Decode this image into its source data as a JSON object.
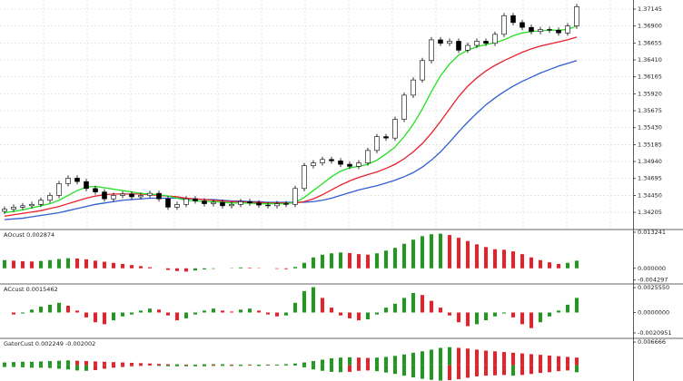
{
  "chart_data": [
    {
      "type": "candlestick",
      "up_color": "#ffffff",
      "down_color": "#000000",
      "grid": true,
      "ylim": [
        1.3397,
        1.3725
      ],
      "yticks": [
        1.37145,
        {
          "value": 1.369,
          "label": "1.36900"
        },
        1.36655,
        {
          "value": 1.3641,
          "label": "1.36410"
        },
        1.36165,
        {
          "value": 1.3592,
          "label": "1.35920"
        },
        1.35675,
        {
          "value": 1.3543,
          "label": "1.35430"
        },
        1.35185,
        {
          "value": 1.3494,
          "label": "1.34940"
        },
        1.34695,
        {
          "value": 1.3445,
          "label": "1.34450"
        },
        1.34205
      ],
      "open": [
        1.3422,
        1.3425,
        1.3428,
        1.343,
        1.3432,
        1.3438,
        1.3445,
        1.3462,
        1.347,
        1.3465,
        1.3455,
        1.345,
        1.344,
        1.3445,
        1.3447,
        1.3443,
        1.3445,
        1.3448,
        1.344,
        1.3428,
        1.3432,
        1.344,
        1.3437,
        1.3433,
        1.3435,
        1.343,
        1.3432,
        1.3436,
        1.3434,
        1.3431,
        1.343,
        1.3433,
        1.3432,
        1.3455,
        1.3488,
        1.3492,
        1.3497,
        1.3495,
        1.349,
        1.3487,
        1.3492,
        1.351,
        1.353,
        1.3528,
        1.3555,
        1.359,
        1.3612,
        1.364,
        1.367,
        1.3665,
        1.3668,
        1.3655,
        1.3662,
        1.3668,
        1.3665,
        1.3678,
        1.3705,
        1.3695,
        1.3688,
        1.3682,
        1.3685,
        1.3684,
        1.368,
        1.369
      ],
      "high": [
        1.3429,
        1.3432,
        1.3434,
        1.3436,
        1.3442,
        1.3449,
        1.3466,
        1.3474,
        1.3474,
        1.3469,
        1.3459,
        1.3454,
        1.3449,
        1.3451,
        1.3451,
        1.3449,
        1.3452,
        1.3452,
        1.3444,
        1.3436,
        1.3444,
        1.3444,
        1.3441,
        1.3439,
        1.3439,
        1.3436,
        1.344,
        1.344,
        1.3438,
        1.3435,
        1.3437,
        1.3437,
        1.3459,
        1.3492,
        1.3496,
        1.3501,
        1.3501,
        1.3499,
        1.3494,
        1.3496,
        1.3514,
        1.3534,
        1.3534,
        1.3559,
        1.3594,
        1.3616,
        1.3644,
        1.3674,
        1.3674,
        1.3672,
        1.3672,
        1.3666,
        1.3672,
        1.3672,
        1.3682,
        1.3709,
        1.3709,
        1.3699,
        1.3692,
        1.3689,
        1.3689,
        1.3688,
        1.3694,
        1.3722
      ],
      "low": [
        1.3418,
        1.3421,
        1.3424,
        1.3426,
        1.3428,
        1.3434,
        1.3441,
        1.3458,
        1.3461,
        1.3451,
        1.3446,
        1.3436,
        1.3436,
        1.3441,
        1.3439,
        1.3439,
        1.3441,
        1.3436,
        1.3424,
        1.3424,
        1.3428,
        1.3433,
        1.3429,
        1.3429,
        1.3426,
        1.3426,
        1.3428,
        1.343,
        1.3427,
        1.3426,
        1.3426,
        1.3428,
        1.3428,
        1.3451,
        1.3484,
        1.3488,
        1.3491,
        1.3486,
        1.3483,
        1.3483,
        1.3488,
        1.3506,
        1.3524,
        1.3524,
        1.3551,
        1.3586,
        1.3608,
        1.3636,
        1.3661,
        1.3661,
        1.3651,
        1.3651,
        1.3658,
        1.3661,
        1.3661,
        1.3674,
        1.3691,
        1.3684,
        1.3678,
        1.3678,
        1.368,
        1.3676,
        1.3676,
        1.3686
      ],
      "close": [
        1.3425,
        1.3428,
        1.343,
        1.3432,
        1.3438,
        1.3445,
        1.3462,
        1.347,
        1.3465,
        1.3455,
        1.345,
        1.344,
        1.3445,
        1.3447,
        1.3443,
        1.3445,
        1.3448,
        1.344,
        1.3428,
        1.3432,
        1.344,
        1.3437,
        1.3433,
        1.3435,
        1.343,
        1.3432,
        1.3436,
        1.3434,
        1.3431,
        1.343,
        1.3433,
        1.3432,
        1.3455,
        1.3488,
        1.3492,
        1.3497,
        1.3495,
        1.349,
        1.3487,
        1.3492,
        1.351,
        1.353,
        1.3528,
        1.3555,
        1.359,
        1.3612,
        1.364,
        1.367,
        1.3665,
        1.3668,
        1.3655,
        1.3662,
        1.3668,
        1.3665,
        1.3678,
        1.3705,
        1.3695,
        1.3688,
        1.3682,
        1.3685,
        1.3684,
        1.368,
        1.369,
        1.3718
      ],
      "series": [
        {
          "color": "#2f5fd0",
          "values": [
            1.341,
            1.3411,
            1.3412,
            1.3414,
            1.3416,
            1.3418,
            1.342,
            1.3423,
            1.3426,
            1.3429,
            1.3432,
            1.3434,
            1.3436,
            1.3438,
            1.3439,
            1.344,
            1.3441,
            1.3441,
            1.3441,
            1.3441,
            1.344,
            1.344,
            1.3439,
            1.3439,
            1.3438,
            1.3437,
            1.3437,
            1.3436,
            1.3436,
            1.3435,
            1.3435,
            1.3435,
            1.3435,
            1.3435,
            1.3436,
            1.3438,
            1.3441,
            1.3445,
            1.3449,
            1.3453,
            1.3456,
            1.3459,
            1.3463,
            1.3467,
            1.3472,
            1.3478,
            1.3486,
            1.3496,
            1.3508,
            1.3522,
            1.3537,
            1.3551,
            1.3564,
            1.3576,
            1.3586,
            1.3595,
            1.3603,
            1.361,
            1.3616,
            1.3622,
            1.3627,
            1.3632,
            1.3636,
            1.364
          ]
        },
        {
          "color": "#e8202a",
          "values": [
            1.3415,
            1.3417,
            1.3419,
            1.3421,
            1.3423,
            1.3426,
            1.3429,
            1.3433,
            1.3437,
            1.3441,
            1.3444,
            1.3446,
            1.3447,
            1.3447,
            1.3447,
            1.3447,
            1.3446,
            1.3445,
            1.3444,
            1.3443,
            1.3441,
            1.344,
            1.3439,
            1.3438,
            1.3437,
            1.3436,
            1.3436,
            1.3435,
            1.3435,
            1.3434,
            1.3434,
            1.3434,
            1.3434,
            1.3436,
            1.344,
            1.3446,
            1.3453,
            1.346,
            1.3466,
            1.3471,
            1.3475,
            1.3479,
            1.3484,
            1.349,
            1.3498,
            1.3508,
            1.352,
            1.3535,
            1.3552,
            1.357,
            1.3588,
            1.3603,
            1.3615,
            1.3625,
            1.3633,
            1.364,
            1.3646,
            1.3652,
            1.3657,
            1.3661,
            1.3664,
            1.3667,
            1.367,
            1.3674
          ]
        },
        {
          "color": "#22e022",
          "values": [
            1.342,
            1.3422,
            1.3424,
            1.3427,
            1.343,
            1.3433,
            1.3438,
            1.3445,
            1.3452,
            1.3457,
            1.3458,
            1.3456,
            1.3454,
            1.3452,
            1.345,
            1.3448,
            1.3447,
            1.3446,
            1.3444,
            1.3441,
            1.3438,
            1.3437,
            1.3436,
            1.3436,
            1.3435,
            1.3434,
            1.3434,
            1.3434,
            1.3433,
            1.3433,
            1.3433,
            1.3433,
            1.3435,
            1.3442,
            1.3452,
            1.3462,
            1.3472,
            1.348,
            1.3485,
            1.3487,
            1.349,
            1.3496,
            1.3505,
            1.3515,
            1.353,
            1.3548,
            1.357,
            1.3595,
            1.3618,
            1.3635,
            1.3648,
            1.3655,
            1.366,
            1.3663,
            1.3666,
            1.367,
            1.3676,
            1.368,
            1.3682,
            1.3683,
            1.3684,
            1.3684,
            1.3685,
            1.369
          ]
        }
      ]
    },
    {
      "type": "bar",
      "title": "AOcust 0.002874",
      "color_rule": "rising",
      "up_color": "#1f9a1f",
      "down_color": "#e8202a",
      "ylim": [
        -0.0054,
        0.0139
      ],
      "yticks": [
        0.013241,
        {
          "value": 0,
          "label": "0.000000"
        },
        -0.004297
      ],
      "series": [
        {
          "values": [
            0.003,
            0.0028,
            0.0026,
            0.0025,
            0.0027,
            0.003,
            0.0034,
            0.0037,
            0.0036,
            0.0033,
            0.0028,
            0.0024,
            0.002,
            0.0016,
            0.0012,
            0.0008,
            0.0004,
            0.0,
            -0.0006,
            -0.001,
            -0.0012,
            -0.0008,
            -0.0004,
            -0.0002,
            0.0,
            0.0001,
            0.0003,
            0.0002,
            0.0001,
            0.0,
            -0.0002,
            -0.0003,
            0.0005,
            0.002,
            0.004,
            0.005,
            0.0055,
            0.0058,
            0.0056,
            0.0052,
            0.005,
            0.0055,
            0.0065,
            0.0075,
            0.009,
            0.0105,
            0.0118,
            0.0125,
            0.0127,
            0.0122,
            0.0112,
            0.01,
            0.0088,
            0.0078,
            0.007,
            0.0068,
            0.0062,
            0.0052,
            0.004,
            0.003,
            0.0022,
            0.0016,
            0.002,
            0.0028
          ]
        }
      ]
    },
    {
      "type": "bar",
      "title": "ACcust 0.0015462",
      "color_rule": "rising",
      "up_color": "#1f9a1f",
      "down_color": "#e8202a",
      "ylim": [
        -0.00256,
        0.00284
      ],
      "yticks": [
        {
          "value": 0.002555,
          "label": "0.0025550"
        },
        {
          "value": 0,
          "label": "0.0000000"
        },
        -0.0020951
      ],
      "series": [
        {
          "values": [
            0.0,
            -0.0002,
            -0.0001,
            0.0003,
            0.0006,
            0.0008,
            0.001,
            0.0007,
            0.0002,
            -0.0005,
            -0.001,
            -0.0012,
            -0.0008,
            -0.0004,
            -0.0002,
            0.0002,
            0.0004,
            0.0003,
            -0.0003,
            -0.0008,
            -0.0006,
            -0.0002,
            0.0002,
            0.0004,
            0.0002,
            0.0001,
            0.0003,
            0.0004,
            0.0002,
            -0.0002,
            -0.0004,
            -0.0003,
            0.001,
            0.0022,
            0.0026,
            0.0015,
            0.0005,
            -0.0003,
            -0.0006,
            -0.0008,
            -0.0007,
            -0.0002,
            0.0005,
            0.0009,
            0.0015,
            0.002,
            0.0018,
            0.0012,
            0.0005,
            -0.0003,
            -0.001,
            -0.0014,
            -0.0012,
            -0.0008,
            -0.0004,
            -0.0001,
            -0.0005,
            -0.0012,
            -0.0016,
            -0.001,
            -0.0004,
            0.0002,
            0.0008,
            0.0015
          ]
        }
      ]
    },
    {
      "type": "bar",
      "title": "GatorCust 0.002249 -0.002002",
      "color_rule": "widening",
      "up_color": "#1f9a1f",
      "down_color": "#e8202a",
      "ylim": [
        -0.00453,
        0.00747
      ],
      "yticks": [
        0.006666
      ],
      "series": [
        {
          "values": [
            0.0008,
            0.0009,
            0.001,
            0.001,
            0.0011,
            0.0012,
            0.0013,
            0.0014,
            0.0013,
            0.0012,
            0.0011,
            0.001,
            0.0009,
            0.0008,
            0.0007,
            0.0006,
            0.0005,
            0.0004,
            0.0003,
            0.0003,
            0.0002,
            0.0002,
            0.0003,
            0.0003,
            0.0003,
            0.0002,
            0.0002,
            0.0002,
            0.0002,
            0.0002,
            0.0002,
            0.0003,
            0.0005,
            0.0008,
            0.0012,
            0.0016,
            0.002,
            0.0022,
            0.0023,
            0.0022,
            0.0021,
            0.0022,
            0.0024,
            0.0027,
            0.0031,
            0.0036,
            0.004,
            0.0045,
            0.005,
            0.0052,
            0.005,
            0.0048,
            0.0045,
            0.0042,
            0.004,
            0.0038,
            0.0036,
            0.0034,
            0.0032,
            0.003,
            0.0028,
            0.0026,
            0.0024,
            0.0022
          ]
        },
        {
          "values": [
            -0.0005,
            -0.0005,
            -0.0006,
            -0.0007,
            -0.0007,
            -0.0008,
            -0.001,
            -0.0012,
            -0.0015,
            -0.0016,
            -0.0014,
            -0.001,
            -0.0007,
            -0.0005,
            -0.0003,
            -0.0002,
            -0.0001,
            -0.0002,
            -0.0003,
            -0.0003,
            -0.0003,
            -0.0003,
            -0.0003,
            -0.0002,
            -0.0002,
            -0.0002,
            -0.0002,
            -0.0001,
            -0.0002,
            -0.0001,
            -0.0001,
            -0.0001,
            -0.0001,
            -0.0006,
            -0.0012,
            -0.0016,
            -0.0019,
            -0.002,
            -0.0019,
            -0.0016,
            -0.0015,
            -0.0017,
            -0.0021,
            -0.0025,
            -0.003,
            -0.0035,
            -0.0039,
            -0.0042,
            -0.0044,
            -0.0043,
            -0.004,
            -0.0036,
            -0.0032,
            -0.003,
            -0.0029,
            -0.0028,
            -0.003,
            -0.0028,
            -0.0025,
            -0.0022,
            -0.002,
            -0.0017,
            -0.0015,
            -0.002
          ]
        }
      ]
    }
  ]
}
